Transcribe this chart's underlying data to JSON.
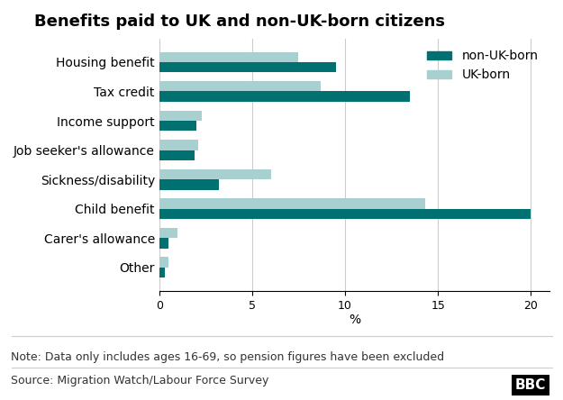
{
  "title": "Benefits paid to UK and non-UK-born citizens",
  "categories": [
    "Housing benefit",
    "Tax credit",
    "Income support",
    "Job seeker's allowance",
    "Sickness/disability",
    "Child benefit",
    "Carer's allowance",
    "Other"
  ],
  "non_uk_born": [
    9.5,
    13.5,
    2.0,
    1.9,
    3.2,
    20.0,
    0.5,
    0.3
  ],
  "uk_born": [
    7.5,
    8.7,
    2.3,
    2.1,
    6.0,
    14.3,
    1.0,
    0.5
  ],
  "color_non_uk": "#007070",
  "color_uk": "#a8d0d0",
  "xlim": [
    0,
    21
  ],
  "xticks": [
    0,
    5,
    10,
    15,
    20
  ],
  "xlabel": "%",
  "note": "Note: Data only includes ages 16-69, so pension figures have been excluded",
  "source": "Source: Migration Watch/Labour Force Survey",
  "legend_labels": [
    "non-UK-born",
    "UK-born"
  ],
  "background_color": "#ffffff",
  "bar_height": 0.35,
  "title_fontsize": 13,
  "label_fontsize": 10,
  "tick_fontsize": 9,
  "note_fontsize": 9,
  "source_fontsize": 9
}
